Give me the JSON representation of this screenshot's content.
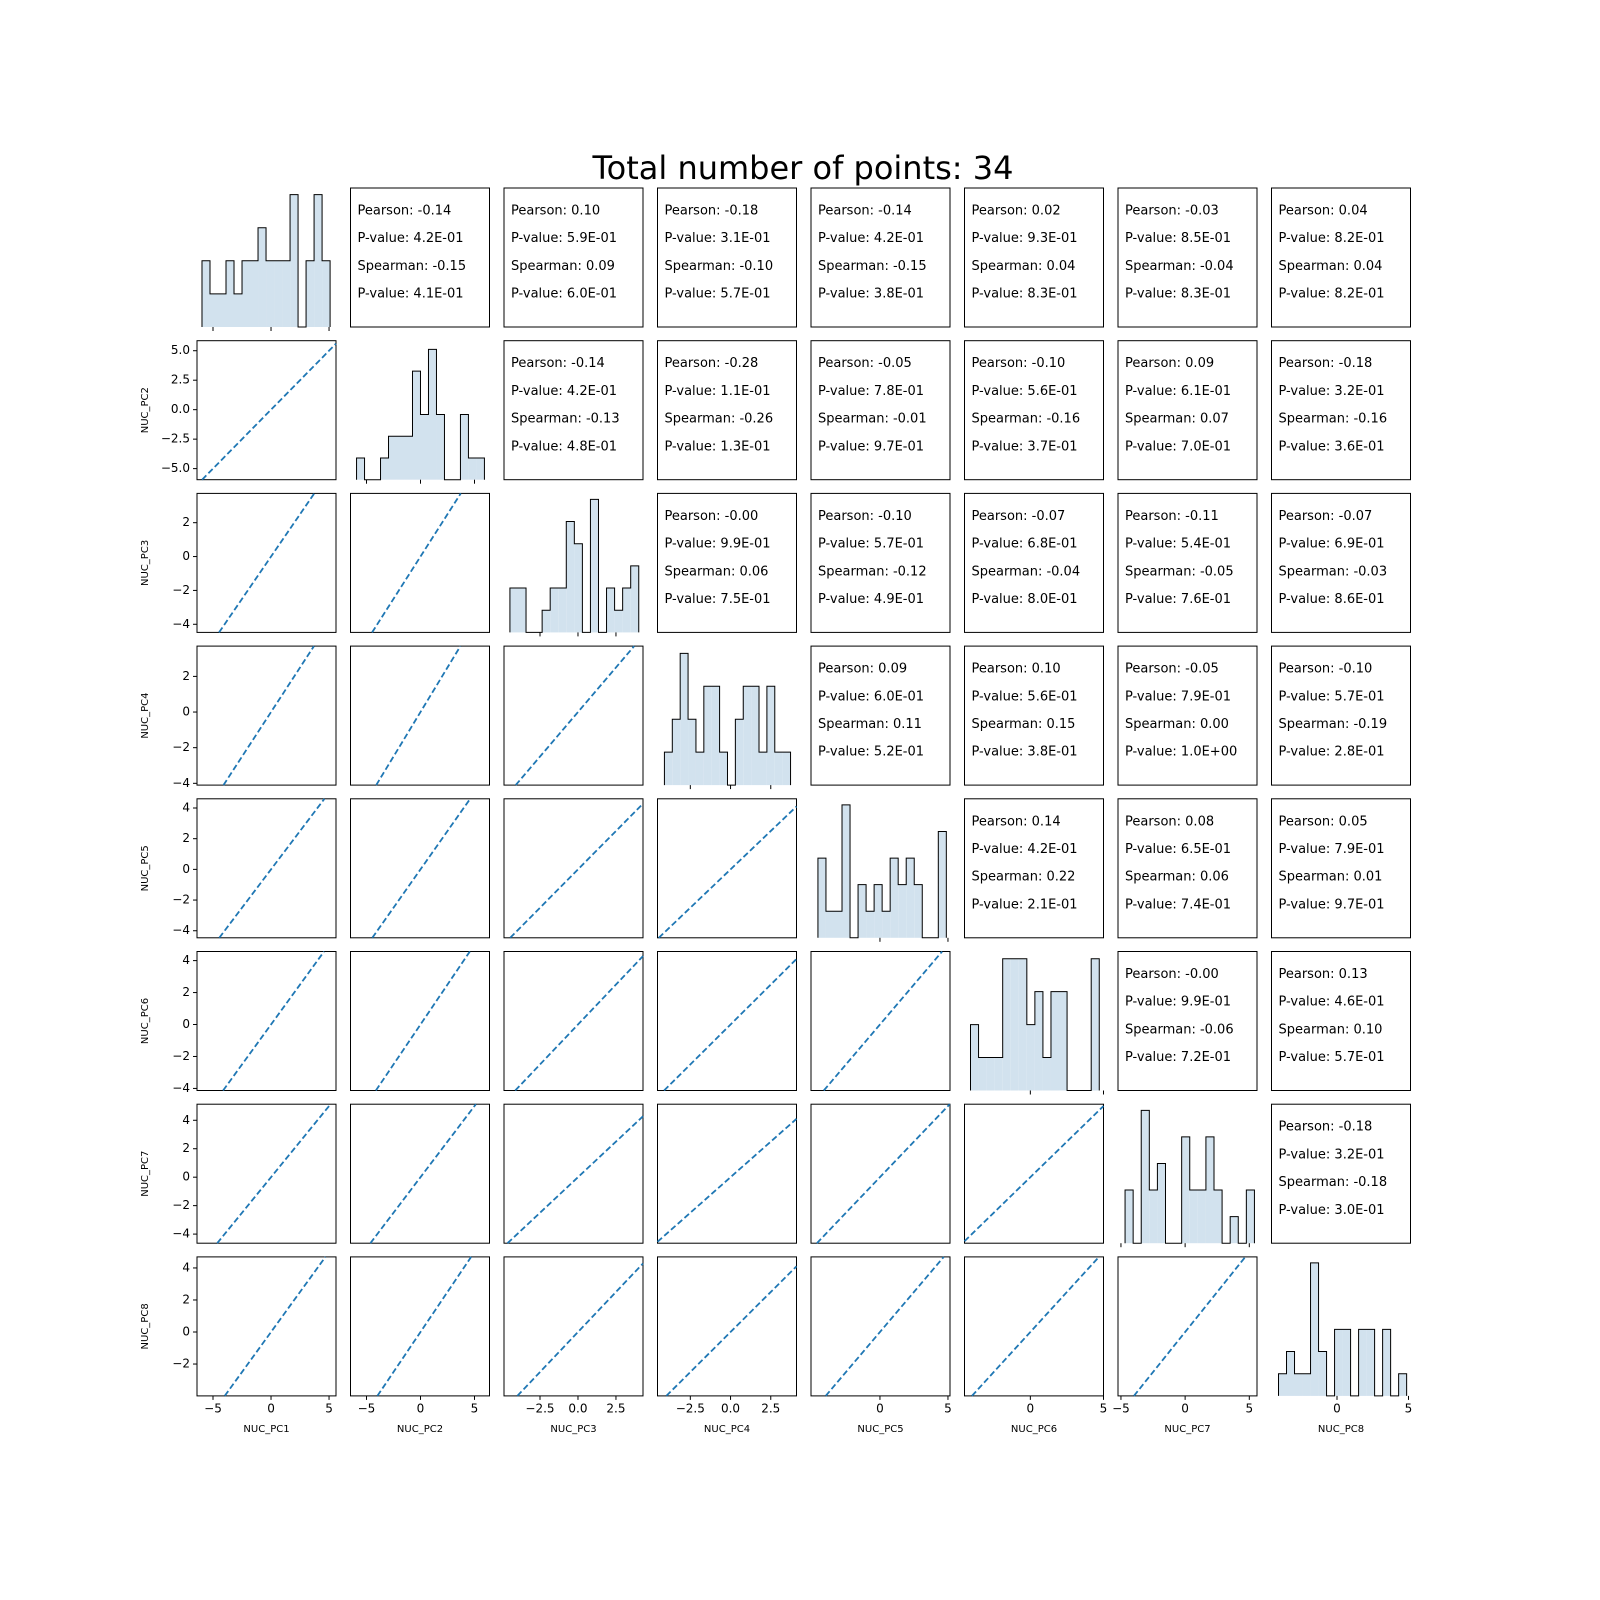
{
  "chart_data": {
    "type": "pairplot",
    "title": "Total number of points: 34",
    "hist_color": "#d2e2ee",
    "edge_color": "#000000",
    "line_color": "#1f77b4",
    "identity_line": true,
    "variables": [
      {
        "name": "NUC_PC1",
        "xlim": [
          -6.38,
          5.6
        ],
        "xticks": [
          {
            "value": -5,
            "label": "−5"
          },
          0,
          5
        ],
        "hist": {
          "ylim": [
            0,
            4.2
          ],
          "bins": [
            -5.95,
            -5.26,
            -4.57,
            -3.88,
            -3.19,
            -2.5,
            -1.81,
            -1.12,
            -0.43,
            0.26,
            0.95,
            1.64,
            2.33,
            3.02,
            3.71,
            4.4,
            5.09
          ],
          "counts": [
            2,
            1,
            1,
            2,
            1,
            2,
            2,
            3,
            2,
            2,
            2,
            4,
            0,
            2,
            4,
            2
          ]
        }
      },
      {
        "name": "NUC_PC2",
        "xlim": [
          -6.48,
          6.39
        ],
        "xticks": [
          {
            "value": -5,
            "label": "−5"
          },
          0,
          5
        ],
        "ylim": [
          -5.94,
          5.85
        ],
        "yticks": [
          {
            "value": -5,
            "label": "−5.0"
          },
          {
            "value": -2.5,
            "label": "−2.5"
          },
          {
            "value": 0,
            "label": "0.0"
          },
          2.5,
          {
            "value": 5,
            "label": "5.0"
          }
        ],
        "hist": {
          "ylim": [
            0,
            6.4
          ],
          "bins": [
            -5.92,
            -5.18,
            -4.44,
            -3.7,
            -2.96,
            -2.22,
            -1.48,
            -0.74,
            0,
            0.74,
            1.48,
            2.22,
            2.96,
            3.7,
            4.44,
            5.18,
            5.92
          ],
          "counts": [
            1,
            0,
            0,
            1,
            2,
            2,
            2,
            5,
            3,
            6,
            3,
            0,
            0,
            3,
            1,
            1
          ]
        }
      },
      {
        "name": "NUC_PC3",
        "xlim": [
          -4.87,
          4.28
        ],
        "xticks": [
          {
            "value": -2.5,
            "label": "−2.5"
          },
          {
            "value": 0,
            "label": "0.0"
          },
          2.5
        ],
        "ylim": [
          -4.48,
          3.73
        ],
        "yticks": [
          {
            "value": -4,
            "label": "−4"
          },
          {
            "value": -2,
            "label": "−2"
          },
          0,
          2
        ],
        "hist": {
          "ylim": [
            0,
            6.27
          ],
          "bins": [
            -4.48,
            -3.95,
            -3.42,
            -2.89,
            -2.36,
            -1.83,
            -1.3,
            -0.77,
            -0.24,
            0.29,
            0.82,
            1.35,
            1.88,
            2.41,
            2.94,
            3.47,
            4.0
          ],
          "counts": [
            2,
            2,
            0,
            0,
            1,
            2,
            2,
            5,
            4,
            0,
            6,
            0,
            2,
            1,
            2,
            3
          ]
        }
      },
      {
        "name": "NUC_PC4",
        "xlim": [
          -4.54,
          4.1
        ],
        "xticks": [
          {
            "value": -2.5,
            "label": "−2.5"
          },
          {
            "value": 0,
            "label": "0.0"
          },
          2.5
        ],
        "ylim": [
          -4.1,
          3.7
        ],
        "yticks": [
          {
            "value": -4,
            "label": "−4"
          },
          {
            "value": -2,
            "label": "−2"
          },
          0,
          2
        ],
        "hist": {
          "ylim": [
            0,
            4.22
          ],
          "bins": [
            -4.11,
            -3.62,
            -3.13,
            -2.64,
            -2.15,
            -1.66,
            -1.17,
            -0.68,
            -0.19,
            0.3,
            0.79,
            1.28,
            1.77,
            2.26,
            2.75,
            3.24,
            3.73
          ],
          "counts": [
            1,
            2,
            4,
            2,
            1,
            3,
            3,
            1,
            0,
            2,
            3,
            3,
            1,
            3,
            1,
            1
          ]
        }
      },
      {
        "name": "NUC_PC5",
        "xlim": [
          -5.07,
          5.15
        ],
        "xticks": [
          0,
          5
        ],
        "ylim": [
          -4.46,
          4.6
        ],
        "yticks": [
          {
            "value": -4,
            "label": "−4"
          },
          {
            "value": -2,
            "label": "−2"
          },
          0,
          2,
          4
        ],
        "hist": {
          "ylim": [
            0,
            5.23
          ],
          "bins": [
            -4.56,
            -3.97,
            -3.38,
            -2.79,
            -2.2,
            -1.61,
            -1.02,
            -0.43,
            0.16,
            0.75,
            1.34,
            1.93,
            2.52,
            3.11,
            3.7,
            4.29,
            4.88
          ],
          "counts": [
            3,
            1,
            1,
            5,
            0,
            2,
            1,
            2,
            1,
            3,
            2,
            3,
            2,
            0,
            0,
            4
          ]
        }
      },
      {
        "name": "NUC_PC6",
        "xlim": [
          -4.5,
          5.0
        ],
        "xticks": [
          0,
          5
        ],
        "ylim": [
          -4.13,
          4.57
        ],
        "yticks": [
          {
            "value": -4,
            "label": "−4"
          },
          {
            "value": -2,
            "label": "−2"
          },
          0,
          2,
          4
        ],
        "hist": {
          "ylim": [
            0,
            4.22
          ],
          "bins": [
            -4.09,
            -3.54,
            -2.99,
            -2.44,
            -1.89,
            -1.34,
            -0.79,
            -0.24,
            0.31,
            0.86,
            1.41,
            1.96,
            2.51,
            3.06,
            3.61,
            4.16,
            4.71
          ],
          "counts": [
            2,
            1,
            1,
            1,
            4,
            4,
            4,
            2,
            3,
            1,
            3,
            3,
            0,
            0,
            0,
            4
          ]
        }
      },
      {
        "name": "NUC_PC7",
        "xlim": [
          -5.23,
          5.6
        ],
        "xticks": [
          {
            "value": -5,
            "label": "−5"
          },
          0,
          5
        ],
        "ylim": [
          -4.64,
          5.13
        ],
        "yticks": [
          {
            "value": -4,
            "label": "−4"
          },
          {
            "value": -2,
            "label": "−2"
          },
          0,
          2,
          4
        ],
        "hist": {
          "ylim": [
            0,
            5.23
          ],
          "bins": [
            -4.68,
            -4.05,
            -3.42,
            -2.79,
            -2.16,
            -1.53,
            -0.9,
            -0.27,
            0.36,
            0.99,
            1.62,
            2.25,
            2.88,
            3.51,
            4.14,
            4.77,
            5.4
          ],
          "counts": [
            2,
            0,
            5,
            2,
            3,
            0,
            0,
            4,
            2,
            2,
            4,
            2,
            0,
            1,
            0,
            2
          ]
        }
      },
      {
        "name": "NUC_PC8",
        "xlim": [
          -4.58,
          5.14
        ],
        "xticks": [
          0,
          5
        ],
        "ylim": [
          -3.99,
          4.69
        ],
        "yticks": [
          {
            "value": -2,
            "label": "−2"
          },
          0,
          2,
          4
        ],
        "hist": {
          "ylim": [
            0,
            6.27
          ],
          "bins": [
            -4.09,
            -3.53,
            -2.97,
            -2.41,
            -1.85,
            -1.29,
            -0.73,
            -0.17,
            0.39,
            0.95,
            1.51,
            2.07,
            2.63,
            3.19,
            3.75,
            4.31,
            4.87
          ],
          "counts": [
            1,
            2,
            1,
            1,
            6,
            2,
            0,
            3,
            3,
            0,
            3,
            3,
            0,
            3,
            0,
            1
          ]
        }
      }
    ],
    "stats": [
      [
        [
          "Pearson: -0.14",
          "P-value: 4.2E-01",
          "Spearman: -0.15",
          "P-value: 4.1E-01"
        ],
        [
          "Pearson: 0.10",
          "P-value: 5.9E-01",
          "Spearman: 0.09",
          "P-value: 6.0E-01"
        ],
        [
          "Pearson: -0.18",
          "P-value: 3.1E-01",
          "Spearman: -0.10",
          "P-value: 5.7E-01"
        ],
        [
          "Pearson: -0.14",
          "P-value: 4.2E-01",
          "Spearman: -0.15",
          "P-value: 3.8E-01"
        ],
        [
          "Pearson: 0.02",
          "P-value: 9.3E-01",
          "Spearman: 0.04",
          "P-value: 8.3E-01"
        ],
        [
          "Pearson: -0.03",
          "P-value: 8.5E-01",
          "Spearman: -0.04",
          "P-value: 8.3E-01"
        ],
        [
          "Pearson: 0.04",
          "P-value: 8.2E-01",
          "Spearman: 0.04",
          "P-value: 8.2E-01"
        ]
      ],
      [
        [
          "Pearson: -0.14",
          "P-value: 4.2E-01",
          "Spearman: -0.13",
          "P-value: 4.8E-01"
        ],
        [
          "Pearson: -0.28",
          "P-value: 1.1E-01",
          "Spearman: -0.26",
          "P-value: 1.3E-01"
        ],
        [
          "Pearson: -0.05",
          "P-value: 7.8E-01",
          "Spearman: -0.01",
          "P-value: 9.7E-01"
        ],
        [
          "Pearson: -0.10",
          "P-value: 5.6E-01",
          "Spearman: -0.16",
          "P-value: 3.7E-01"
        ],
        [
          "Pearson: 0.09",
          "P-value: 6.1E-01",
          "Spearman: 0.07",
          "P-value: 7.0E-01"
        ],
        [
          "Pearson: -0.18",
          "P-value: 3.2E-01",
          "Spearman: -0.16",
          "P-value: 3.6E-01"
        ]
      ],
      [
        [
          "Pearson: -0.00",
          "P-value: 9.9E-01",
          "Spearman: 0.06",
          "P-value: 7.5E-01"
        ],
        [
          "Pearson: -0.10",
          "P-value: 5.7E-01",
          "Spearman: -0.12",
          "P-value: 4.9E-01"
        ],
        [
          "Pearson: -0.07",
          "P-value: 6.8E-01",
          "Spearman: -0.04",
          "P-value: 8.0E-01"
        ],
        [
          "Pearson: -0.11",
          "P-value: 5.4E-01",
          "Spearman: -0.05",
          "P-value: 7.6E-01"
        ],
        [
          "Pearson: -0.07",
          "P-value: 6.9E-01",
          "Spearman: -0.03",
          "P-value: 8.6E-01"
        ]
      ],
      [
        [
          "Pearson: 0.09",
          "P-value: 6.0E-01",
          "Spearman: 0.11",
          "P-value: 5.2E-01"
        ],
        [
          "Pearson: 0.10",
          "P-value: 5.6E-01",
          "Spearman: 0.15",
          "P-value: 3.8E-01"
        ],
        [
          "Pearson: -0.05",
          "P-value: 7.9E-01",
          "Spearman: 0.00",
          "P-value: 1.0E+00"
        ],
        [
          "Pearson: -0.10",
          "P-value: 5.7E-01",
          "Spearman: -0.19",
          "P-value: 2.8E-01"
        ]
      ],
      [
        [
          "Pearson: 0.14",
          "P-value: 4.2E-01",
          "Spearman: 0.22",
          "P-value: 2.1E-01"
        ],
        [
          "Pearson: 0.08",
          "P-value: 6.5E-01",
          "Spearman: 0.06",
          "P-value: 7.4E-01"
        ],
        [
          "Pearson: 0.05",
          "P-value: 7.9E-01",
          "Spearman: 0.01",
          "P-value: 9.7E-01"
        ]
      ],
      [
        [
          "Pearson: -0.00",
          "P-value: 9.9E-01",
          "Spearman: -0.06",
          "P-value: 7.2E-01"
        ],
        [
          "Pearson: 0.13",
          "P-value: 4.6E-01",
          "Spearman: 0.10",
          "P-value: 5.7E-01"
        ]
      ],
      [
        [
          "Pearson: -0.18",
          "P-value: 3.2E-01",
          "Spearman: -0.18",
          "P-value: 3.0E-01"
        ]
      ]
    ]
  }
}
